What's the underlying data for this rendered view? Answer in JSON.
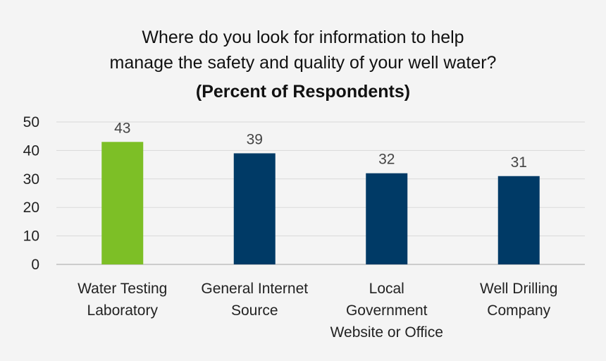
{
  "chart_data": {
    "type": "bar",
    "title_lines": [
      "Where do you look for information to help",
      "manage the safety and quality of your well water?"
    ],
    "subtitle": "(Percent of Respondents)",
    "categories": [
      [
        "Water Testing",
        "Laboratory"
      ],
      [
        "General Internet",
        "Source"
      ],
      [
        "Local",
        "Government",
        "Website or Office"
      ],
      [
        "Well Drilling",
        "Company"
      ]
    ],
    "values": [
      43,
      39,
      32,
      31
    ],
    "colors": [
      "#7dbf26",
      "#003a66",
      "#003a66",
      "#003a66"
    ],
    "ylim": [
      0,
      50
    ],
    "yticks": [
      0,
      10,
      20,
      30,
      40,
      50
    ],
    "grid": true,
    "xlabel": "",
    "ylabel": ""
  }
}
